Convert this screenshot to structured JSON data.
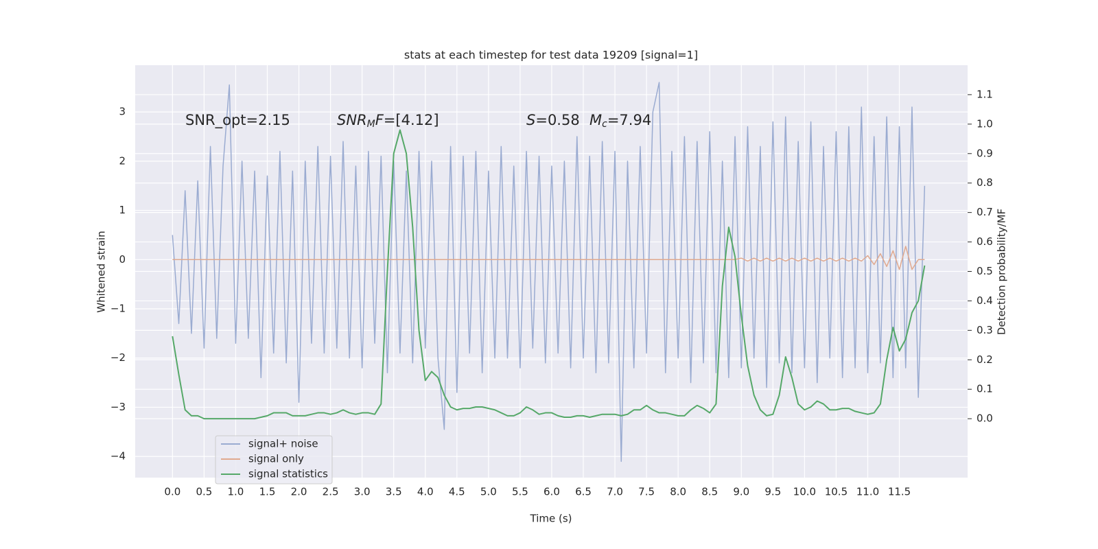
{
  "chart_data": {
    "type": "line",
    "title": "stats at each timestep for test data 19209 [signal=1]",
    "xlabel": "Time (s)",
    "ylabel": "Whitened strain",
    "y2label": "Detection probability/MF",
    "annotations": [
      [
        "SNR_opt=2.15"
      ],
      [
        "SNR",
        "M",
        "F",
        "=[4.12]"
      ],
      [
        "S",
        "=0.58"
      ],
      [
        "M",
        "c",
        "=7.94"
      ]
    ],
    "grid": true,
    "legend": "lower left",
    "xlim": [
      -0.59,
      12.58
    ],
    "ylim": [
      -4.43,
      3.95
    ],
    "y2lim": [
      -0.2,
      1.2
    ],
    "xticks": [
      {
        "value": 0,
        "label": "0.0"
      },
      0.5,
      {
        "value": 1,
        "label": "1.0"
      },
      1.5,
      {
        "value": 2,
        "label": "2.0"
      },
      2.5,
      {
        "value": 3,
        "label": "3.0"
      },
      3.5,
      {
        "value": 4,
        "label": "4.0"
      },
      4.5,
      {
        "value": 5,
        "label": "5.0"
      },
      5.5,
      {
        "value": 6,
        "label": "6.0"
      },
      6.5,
      {
        "value": 7,
        "label": "7.0"
      },
      7.5,
      {
        "value": 8,
        "label": "8.0"
      },
      8.5,
      {
        "value": 9,
        "label": "9.0"
      },
      9.5,
      {
        "value": 10,
        "label": "10.0"
      },
      10.5,
      {
        "value": 11,
        "label": "11.0"
      },
      11.5
    ],
    "yticks": [
      {
        "value": -4,
        "label": "−4"
      },
      {
        "value": -3,
        "label": "−3"
      },
      {
        "value": -2,
        "label": "−2"
      },
      {
        "value": -1,
        "label": "−1"
      },
      0,
      1,
      2,
      3
    ],
    "y2ticks": [
      {
        "value": 0,
        "label": "0.0"
      },
      0.1,
      0.2,
      0.3,
      0.4,
      0.5,
      0.6,
      0.7,
      0.8,
      0.9,
      {
        "value": 1,
        "label": "1.0"
      },
      1.1
    ],
    "x": [
      0,
      0.1,
      0.2,
      0.3,
      0.4,
      0.5,
      0.6,
      0.7,
      0.8,
      0.9,
      1,
      1.1,
      1.2,
      1.3,
      1.4,
      1.5,
      1.6,
      1.7,
      1.8,
      1.9,
      2,
      2.1,
      2.2,
      2.3,
      2.4,
      2.5,
      2.6,
      2.7,
      2.8,
      2.9,
      3,
      3.1,
      3.2,
      3.3,
      3.4,
      3.5,
      3.6,
      3.7,
      3.8,
      3.9,
      4,
      4.1,
      4.2,
      4.3,
      4.4,
      4.5,
      4.6,
      4.7,
      4.8,
      4.9,
      5,
      5.1,
      5.2,
      5.3,
      5.4,
      5.5,
      5.6,
      5.7,
      5.8,
      5.9,
      6,
      6.1,
      6.2,
      6.3,
      6.4,
      6.5,
      6.6,
      6.7,
      6.8,
      6.9,
      7,
      7.1,
      7.2,
      7.3,
      7.4,
      7.5,
      7.6,
      7.7,
      7.8,
      7.9,
      8,
      8.1,
      8.2,
      8.3,
      8.4,
      8.5,
      8.6,
      8.7,
      8.8,
      8.9,
      9,
      9.1,
      9.2,
      9.3,
      9.4,
      9.5,
      9.6,
      9.7,
      9.8,
      9.9,
      10,
      10.1,
      10.2,
      10.3,
      10.4,
      10.5,
      10.6,
      10.7,
      10.8,
      10.9,
      11,
      11.1,
      11.2,
      11.3,
      11.4,
      11.5,
      11.6,
      11.7,
      11.8,
      11.9
    ],
    "series": [
      {
        "name": "signal+ noise",
        "color": "#9aabd1",
        "values": [
          0.5,
          -1.3,
          1.4,
          -1.5,
          1.6,
          -1.8,
          2.3,
          -1.6,
          1.9,
          3.55,
          -1.7,
          2.0,
          -1.6,
          1.8,
          -2.4,
          1.7,
          -1.9,
          2.2,
          -2.1,
          1.8,
          -2.9,
          2.0,
          -1.7,
          2.3,
          -1.9,
          2.1,
          -1.8,
          2.4,
          -2.0,
          1.9,
          -2.2,
          2.2,
          -1.7,
          2.1,
          -2.3,
          2.0,
          -1.9,
          1.8,
          -2.1,
          2.2,
          -1.8,
          2.0,
          -2.0,
          -3.45,
          2.3,
          -2.7,
          2.1,
          -1.9,
          2.2,
          -2.3,
          1.8,
          -2.0,
          2.3,
          -2.0,
          1.9,
          -2.2,
          2.2,
          -1.8,
          2.1,
          -2.1,
          1.9,
          -1.9,
          2.0,
          -2.2,
          2.5,
          -2.0,
          2.1,
          -2.3,
          2.4,
          -2.1,
          2.2,
          -4.1,
          2.0,
          -2.2,
          2.3,
          -1.9,
          3.0,
          3.6,
          -2.3,
          2.2,
          -2.0,
          2.5,
          -2.5,
          2.4,
          -2.1,
          2.6,
          -2.3,
          2.0,
          -2.4,
          2.5,
          -2.2,
          2.7,
          -2.0,
          2.3,
          -2.6,
          2.8,
          -2.1,
          2.9,
          -2.3,
          2.4,
          -2.2,
          2.8,
          -2.5,
          2.3,
          -2.0,
          2.6,
          -2.4,
          2.7,
          -2.2,
          3.1,
          -2.3,
          2.5,
          -2.1,
          2.9,
          -2.4,
          2.7,
          -2.2,
          3.1,
          -2.8,
          1.5
        ]
      },
      {
        "name": "signal only",
        "color": "#e0a98f",
        "values": [
          0,
          0,
          0,
          0,
          0,
          0,
          0,
          0,
          0,
          0,
          0,
          0,
          0,
          0,
          0,
          0,
          0,
          0,
          0,
          0,
          0,
          0,
          0,
          0,
          0,
          0,
          0,
          0,
          0,
          0,
          0,
          0,
          0,
          0,
          0,
          0,
          0,
          0,
          0,
          0,
          0,
          0,
          0,
          0,
          0,
          0,
          0,
          0,
          0,
          0,
          0,
          0,
          0,
          0,
          0,
          0,
          0,
          0,
          0,
          0,
          0,
          0,
          0,
          0,
          0,
          0,
          0,
          0,
          0,
          0,
          0,
          0,
          0,
          0,
          0,
          0,
          0,
          0,
          0,
          0,
          0,
          0,
          0,
          0,
          0,
          0,
          0,
          0,
          0,
          0,
          0.03,
          -0.03,
          0.03,
          -0.03,
          0.03,
          -0.03,
          0.03,
          -0.03,
          0.03,
          -0.03,
          0.03,
          -0.03,
          0.03,
          -0.03,
          0.03,
          -0.03,
          0.03,
          -0.03,
          0.03,
          -0.03,
          0.08,
          -0.1,
          0.12,
          -0.14,
          0.18,
          -0.2,
          0.27,
          -0.2,
          0,
          0
        ]
      },
      {
        "name": "signal statistics",
        "color": "#55a868",
        "axis": "y2",
        "values": [
          0.28,
          0.15,
          0.03,
          0.01,
          0.01,
          0,
          0,
          0,
          0,
          0,
          0,
          0,
          0,
          0,
          0.005,
          0.01,
          0.02,
          0.02,
          0.02,
          0.01,
          0.01,
          0.01,
          0.015,
          0.02,
          0.02,
          0.015,
          0.02,
          0.03,
          0.02,
          0.015,
          0.02,
          0.02,
          0.015,
          0.05,
          0.5,
          0.9,
          0.98,
          0.9,
          0.65,
          0.3,
          0.13,
          0.16,
          0.14,
          0.08,
          0.04,
          0.03,
          0.035,
          0.035,
          0.04,
          0.04,
          0.035,
          0.03,
          0.02,
          0.01,
          0.01,
          0.02,
          0.04,
          0.03,
          0.015,
          0.02,
          0.02,
          0.01,
          0.005,
          0.005,
          0.01,
          0.01,
          0.005,
          0.01,
          0.015,
          0.015,
          0.015,
          0.01,
          0.015,
          0.03,
          0.03,
          0.045,
          0.03,
          0.02,
          0.02,
          0.015,
          0.01,
          0.01,
          0.03,
          0.045,
          0.035,
          0.02,
          0.05,
          0.45,
          0.65,
          0.55,
          0.35,
          0.18,
          0.08,
          0.03,
          0.01,
          0.015,
          0.08,
          0.21,
          0.14,
          0.05,
          0.03,
          0.04,
          0.06,
          0.05,
          0.03,
          0.03,
          0.035,
          0.035,
          0.025,
          0.02,
          0.015,
          0.02,
          0.05,
          0.2,
          0.31,
          0.23,
          0.27,
          0.36,
          0.4,
          0.52
        ]
      }
    ]
  }
}
